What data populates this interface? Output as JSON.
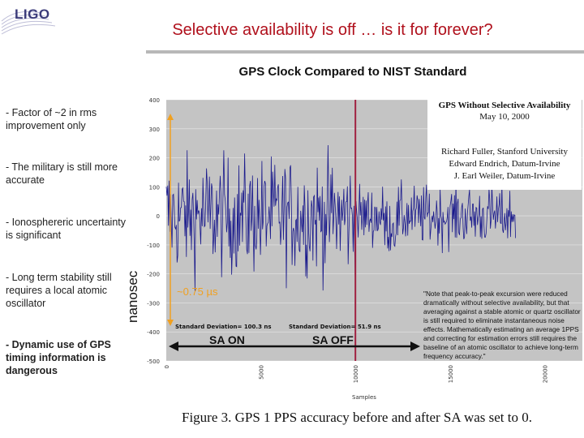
{
  "logo": {
    "text": "LIGO"
  },
  "slide_title": "Selective availability is off … is it for forever?",
  "chart_title": "GPS Clock Compared to NIST Standard",
  "bullets": [
    {
      "text": "- Factor of ~2 in rms improvement only",
      "bold": false
    },
    {
      "text": "- The military is still more accurate",
      "bold": false
    },
    {
      "text": "- Ionosphereric uncertainty is significant",
      "bold": false
    },
    {
      "text": "- Long term stability still requires a local atomic oscillator",
      "bold": false
    },
    {
      "text": "- Dynamic use of GPS timing information is dangerous",
      "bold": true
    }
  ],
  "inset": {
    "title": "GPS Without Selective Availability",
    "date": "May 10, 2000",
    "authors": [
      "Richard Fuller, Stanford University",
      "Edward Endrich, Datum-Irvine",
      "J. Earl Weiler, Datum-Irvine"
    ]
  },
  "annotations": {
    "excursion": "~0.75 µs",
    "sd_on": "Standard Deviation= 100.3 ns",
    "sd_off": "Standard Deviation= 51.9 ns",
    "sa_on": "SA ON",
    "sa_off": "SA OFF"
  },
  "note": "\"Note that peak-to-peak excursion were reduced dramatically without selective availability, but that averaging against a stable atomic or quartz oscillator is still required to eliminate instantaneous noise effects. Mathematically estimating an average 1PPS and correcting for estimation errors still requires the baseline of an atomic oscillator to achieve long-term frequency accuracy.\"",
  "caption": "Figure 3. GPS 1 PPS accuracy before and after SA was set to 0.",
  "chart_data": {
    "type": "line",
    "title": "GPS Clock Compared to NIST Standard",
    "xlabel": "Samples",
    "ylabel": "nanosec",
    "xlim": [
      0,
      22000
    ],
    "ylim": [
      -500,
      400
    ],
    "x_ticks": [
      "0",
      "5000",
      "10000",
      "15000",
      "20000"
    ],
    "y_ticks": [
      "400",
      "300",
      "200",
      "100",
      "0",
      "-100",
      "-200",
      "-300",
      "-400",
      "-500"
    ],
    "sa_transition_x": 10000,
    "series": [
      {
        "segment": "SA ON",
        "x_range": [
          0,
          10000
        ],
        "std_dev_ns": 100.3
      },
      {
        "segment": "SA OFF",
        "x_range": [
          10000,
          18500
        ],
        "std_dev_ns": 51.9
      }
    ],
    "colors": {
      "plot_bg": "#c4c4c4",
      "trace": "#1a1a8c",
      "sa_line": "#a02040",
      "excursion_arrow": "#f0a020"
    }
  }
}
